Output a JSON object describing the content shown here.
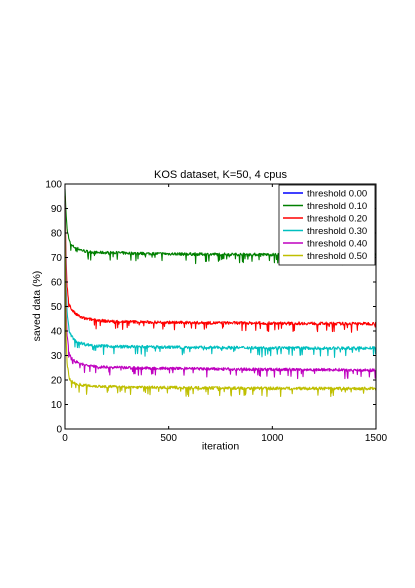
{
  "chart_data": {
    "type": "line",
    "title": "KOS dataset, K=50, 4 cpus",
    "xlabel": "iteration",
    "ylabel": "saved data (%)",
    "xlim": [
      0,
      1500
    ],
    "ylim": [
      0,
      100
    ],
    "xticks": [
      0,
      500,
      1000,
      1500
    ],
    "yticks": [
      0,
      10,
      20,
      30,
      40,
      50,
      60,
      70,
      80,
      90,
      100
    ],
    "grid": false,
    "legend_position": "top-right",
    "series": [
      {
        "name": "threshold 0.00",
        "color": "#0000ff",
        "x": [
          0,
          100,
          500,
          1000,
          1500
        ],
        "y": [
          100,
          100,
          100,
          100,
          100
        ]
      },
      {
        "name": "threshold 0.10",
        "color": "#008000",
        "x": [
          0,
          5,
          10,
          20,
          30,
          50,
          80,
          100,
          150,
          200,
          300,
          400,
          500,
          600,
          700,
          800,
          900,
          1000,
          1100,
          1200,
          1300,
          1400,
          1450,
          1500
        ],
        "y": [
          98,
          88,
          82,
          77,
          75,
          74,
          73,
          72.5,
          72,
          72,
          71.8,
          71.6,
          71.5,
          71.4,
          71.3,
          71.3,
          71.2,
          71.2,
          71.1,
          71.1,
          71,
          71,
          71,
          71
        ]
      },
      {
        "name": "threshold 0.20",
        "color": "#ff0000",
        "x": [
          0,
          5,
          10,
          20,
          30,
          50,
          80,
          100,
          150,
          200,
          300,
          400,
          500,
          600,
          700,
          800,
          900,
          1000,
          1100,
          1200,
          1300,
          1400,
          1450,
          1500
        ],
        "y": [
          95,
          70,
          58,
          51,
          49,
          47,
          45.5,
          45,
          44.5,
          44,
          43.8,
          43.6,
          43.5,
          43.4,
          43.3,
          43.3,
          43.2,
          43.2,
          43.1,
          43.1,
          43,
          43,
          43,
          43
        ]
      },
      {
        "name": "threshold 0.30",
        "color": "#00bfbf",
        "x": [
          0,
          5,
          10,
          20,
          30,
          50,
          80,
          100,
          150,
          200,
          300,
          400,
          500,
          600,
          700,
          800,
          900,
          1000,
          1100,
          1200,
          1300,
          1400,
          1450,
          1500
        ],
        "y": [
          93,
          60,
          48,
          40,
          38,
          36,
          35,
          34.5,
          34,
          33.8,
          33.6,
          33.5,
          33.4,
          33.3,
          33.3,
          33.2,
          33.2,
          33.1,
          33.1,
          33,
          33,
          33,
          33,
          33
        ]
      },
      {
        "name": "threshold 0.40",
        "color": "#bf00bf",
        "x": [
          0,
          5,
          10,
          20,
          30,
          50,
          80,
          100,
          150,
          200,
          300,
          400,
          500,
          600,
          700,
          800,
          900,
          1000,
          1100,
          1200,
          1300,
          1400,
          1450,
          1500
        ],
        "y": [
          92,
          50,
          38,
          31,
          29,
          27.5,
          26.5,
          26,
          25.5,
          25.2,
          25,
          24.8,
          24.7,
          24.6,
          24.5,
          24.4,
          24.4,
          24.3,
          24.3,
          24.2,
          24.2,
          24.1,
          24,
          24
        ]
      },
      {
        "name": "threshold 0.50",
        "color": "#bfbf00",
        "x": [
          0,
          5,
          10,
          20,
          30,
          50,
          80,
          100,
          150,
          200,
          300,
          400,
          500,
          600,
          700,
          800,
          900,
          1000,
          1100,
          1200,
          1300,
          1400,
          1450,
          1500
        ],
        "y": [
          90,
          38,
          27,
          21,
          19.5,
          18.5,
          18,
          17.8,
          17.5,
          17.3,
          17.1,
          17,
          16.9,
          16.8,
          16.8,
          16.7,
          16.7,
          16.6,
          16.6,
          16.5,
          16.5,
          16.5,
          16.5,
          16.5
        ]
      }
    ]
  }
}
